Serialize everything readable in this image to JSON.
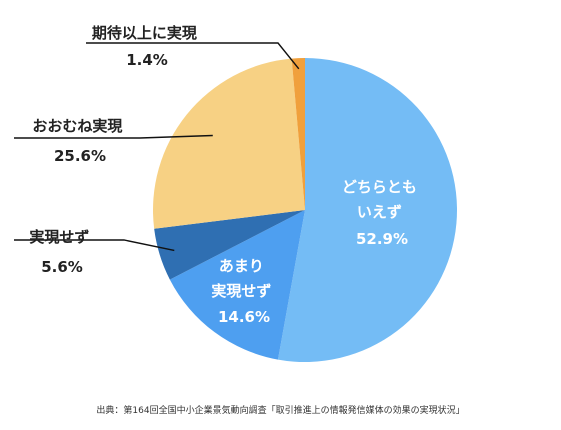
{
  "chart_data": {
    "type": "pie",
    "slices": [
      {
        "label": "どちらとも いえず",
        "value": 52.9,
        "value_label": "52.9%",
        "color": "#74bcf5"
      },
      {
        "label": "あまり 実現せず",
        "value": 14.6,
        "value_label": "14.6%",
        "color": "#4e9ff0"
      },
      {
        "label": "実現せず",
        "value": 5.6,
        "value_label": "5.6%",
        "color": "#2f6fb2"
      },
      {
        "label": "おおむね実現",
        "value": 25.6,
        "value_label": "25.6%",
        "color": "#f7d184"
      },
      {
        "label": "期待以上に実現",
        "value": 1.4,
        "value_label": "1.4%",
        "color": "#f0a03c"
      }
    ],
    "start_angle": "12 o'clock",
    "direction": "clockwise"
  },
  "labels": {
    "inside_1": [
      "どちらとも",
      "いえず",
      "52.9%"
    ],
    "inside_2": [
      "あまり",
      "実現せず",
      "14.6%"
    ],
    "outside_3": [
      "実現せず",
      "5.6%"
    ],
    "outside_4": [
      "おおむね実現",
      "25.6%"
    ],
    "outside_5": [
      "期待以上に実現",
      "1.4%"
    ]
  },
  "source": "出典：第164回全国中小企業景気動向調査「取引推進上の情報発信媒体の効果の実現状況」"
}
